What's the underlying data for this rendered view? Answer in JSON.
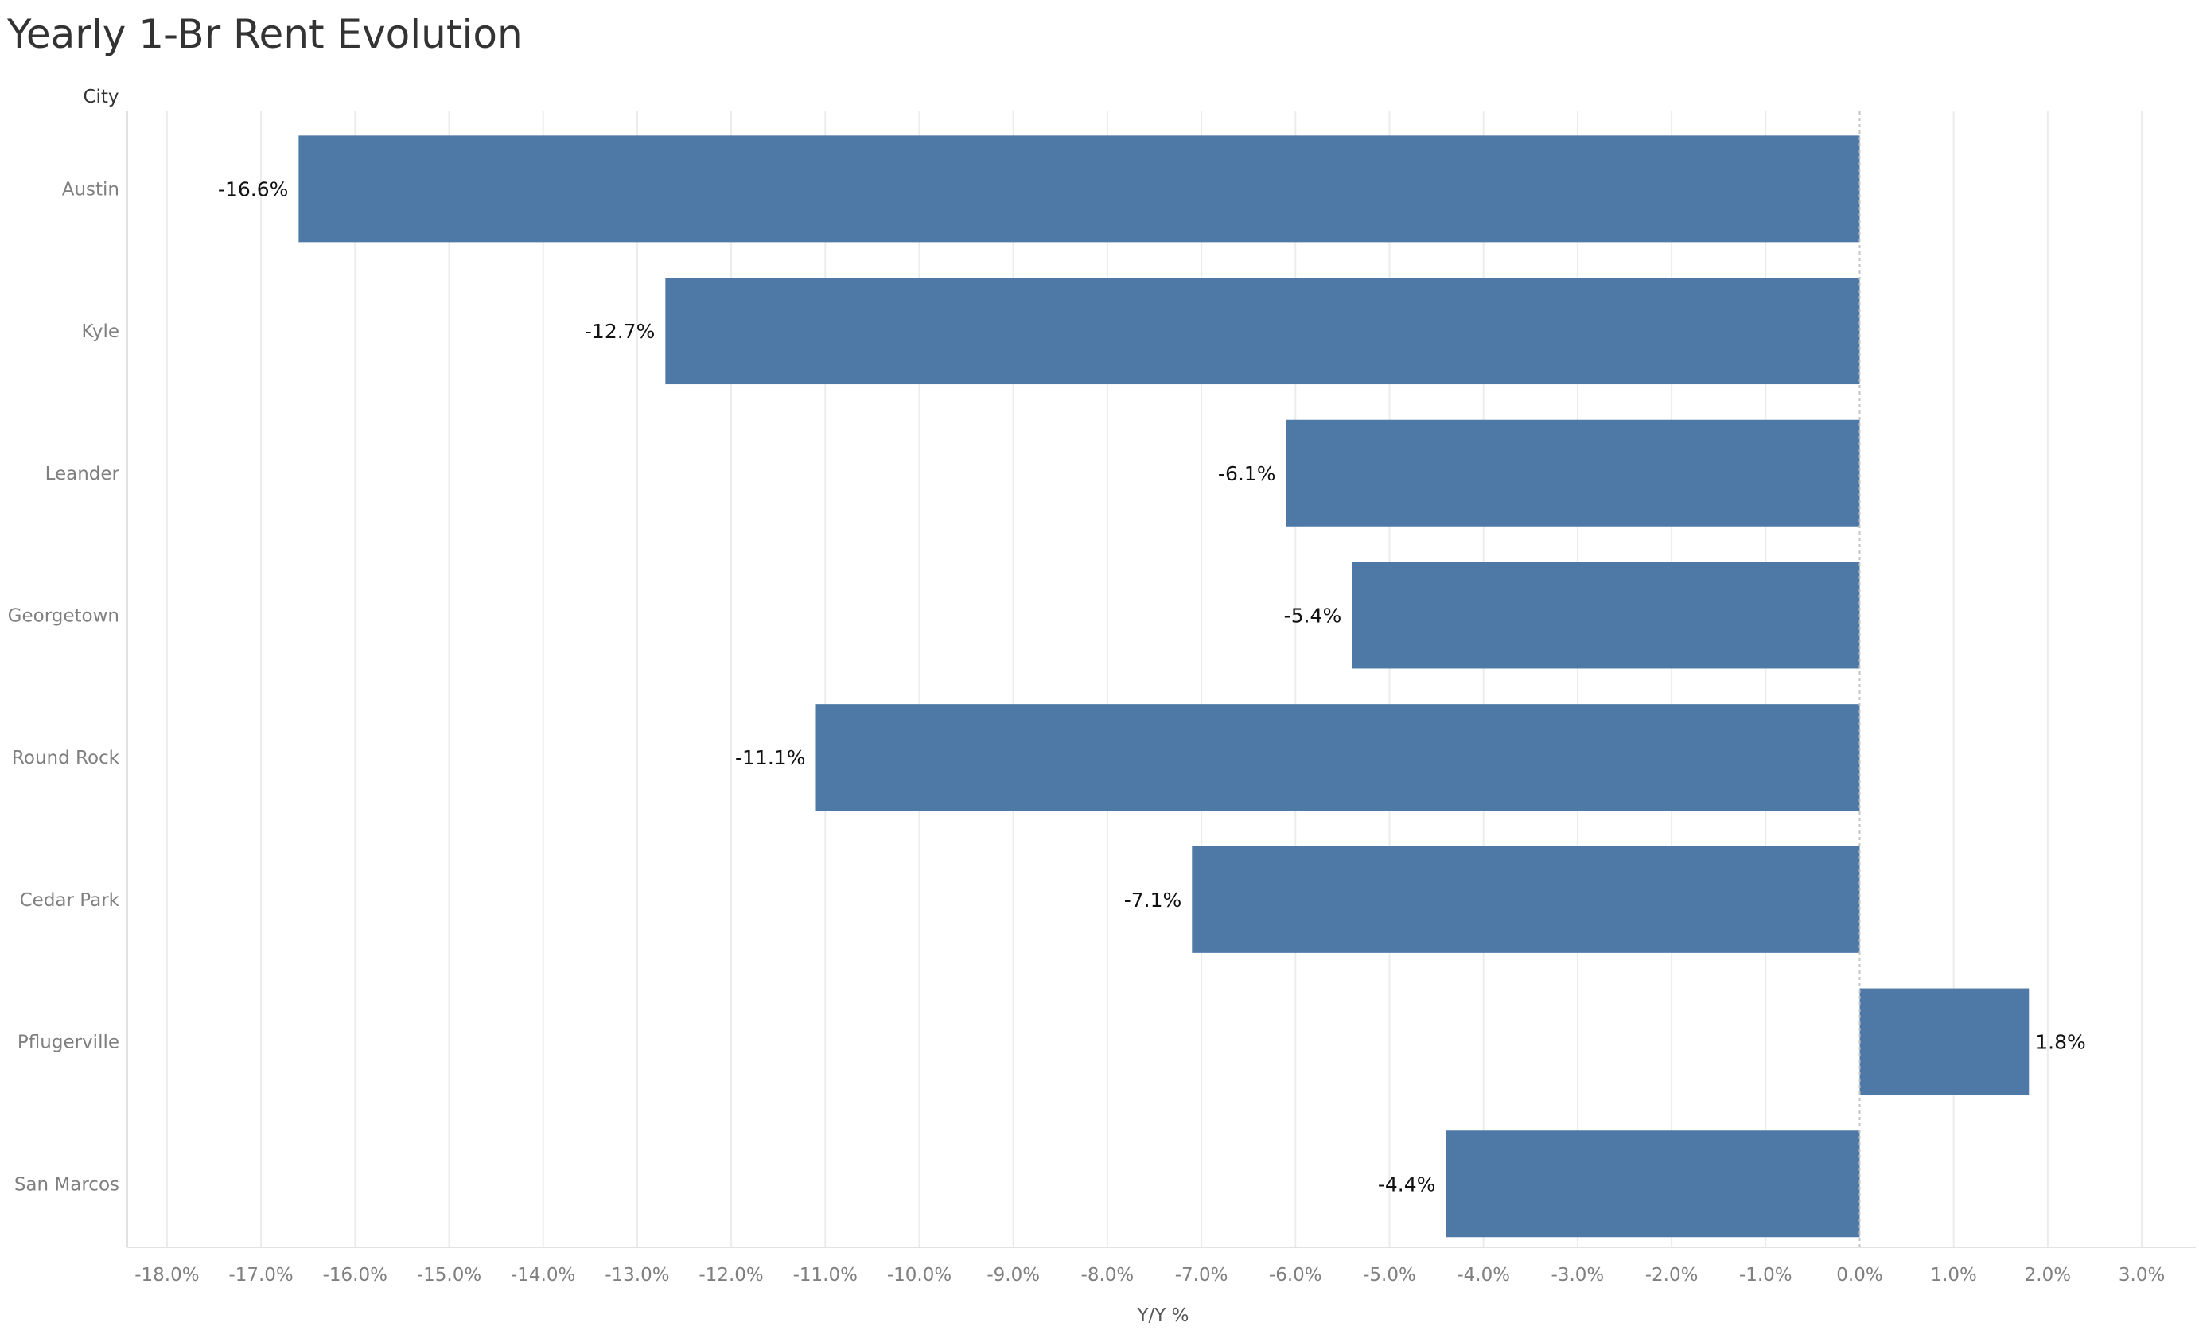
{
  "chart_data": {
    "type": "bar",
    "orientation": "horizontal",
    "title": "Yearly 1-Br Rent Evolution",
    "row_header": "City",
    "xlabel": "Y/Y %",
    "ylabel": "",
    "xlim": [
      -18.4,
      3.4
    ],
    "x_ticks": [
      -18,
      -17,
      -16,
      -15,
      -14,
      -13,
      -12,
      -11,
      -10,
      -9,
      -8,
      -7,
      -6,
      -5,
      -4,
      -3,
      -2,
      -1,
      0,
      1,
      2,
      3
    ],
    "x_tick_labels": [
      "-18.0%",
      "-17.0%",
      "-16.0%",
      "-15.0%",
      "-14.0%",
      "-13.0%",
      "-12.0%",
      "-11.0%",
      "-10.0%",
      "-9.0%",
      "-8.0%",
      "-7.0%",
      "-6.0%",
      "-5.0%",
      "-4.0%",
      "-3.0%",
      "-2.0%",
      "-1.0%",
      "0.0%",
      "1.0%",
      "2.0%",
      "3.0%"
    ],
    "categories": [
      "Austin",
      "Kyle",
      "Leander",
      "Georgetown",
      "Round Rock",
      "Cedar Park",
      "Pflugerville",
      "San Marcos"
    ],
    "values": [
      -16.6,
      -12.7,
      -6.1,
      -5.4,
      -11.1,
      -7.1,
      1.8,
      -4.4
    ],
    "data_labels": [
      "-16.6%",
      "-12.7%",
      "-6.1%",
      "-5.4%",
      "-11.1%",
      "-7.1%",
      "1.8%",
      "-4.4%"
    ],
    "grid": true,
    "legend": "none",
    "bar_color": "#4e79a7"
  }
}
